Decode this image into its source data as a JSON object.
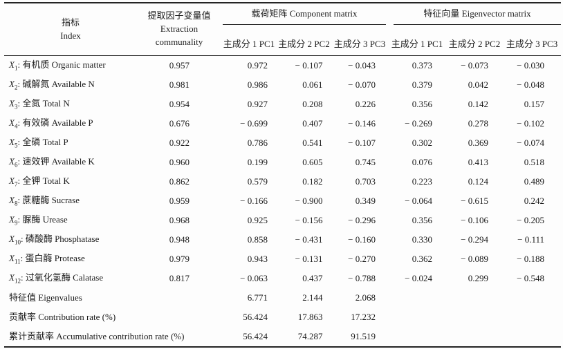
{
  "header": {
    "index_zh": "指标",
    "index_en": "Index",
    "communality_zh": "提取因子变量值",
    "communality_en": "Extraction communality",
    "component_matrix": "载荷矩阵 Component matrix",
    "eigenvector_matrix": "特征向量 Eigenvector matrix",
    "pc": [
      "主成分 1 PC1",
      "主成分 2 PC2",
      "主成分 3 PC3"
    ]
  },
  "rows": [
    {
      "sym": "X",
      "sub": "1",
      "label": ": 有机质 Organic matter",
      "communality": "0.957",
      "component": [
        "0.972",
        "− 0.107",
        "− 0.043"
      ],
      "eigenvector": [
        "0.373",
        "− 0.073",
        "− 0.030"
      ]
    },
    {
      "sym": "X",
      "sub": "2",
      "label": ": 碱解氮 Available N",
      "communality": "0.981",
      "component": [
        "0.986",
        "0.061",
        "− 0.070"
      ],
      "eigenvector": [
        "0.379",
        "0.042",
        "− 0.048"
      ]
    },
    {
      "sym": "X",
      "sub": "3",
      "label": ": 全氮 Total N",
      "communality": "0.954",
      "component": [
        "0.927",
        "0.208",
        "0.226"
      ],
      "eigenvector": [
        "0.356",
        "0.142",
        "0.157"
      ]
    },
    {
      "sym": "X",
      "sub": "4",
      "label": ": 有效磷 Available P",
      "communality": "0.676",
      "component": [
        "− 0.699",
        "0.407",
        "− 0.146"
      ],
      "eigenvector": [
        "− 0.269",
        "0.278",
        "− 0.102"
      ]
    },
    {
      "sym": "X",
      "sub": "5",
      "label": ": 全磷 Total P",
      "communality": "0.922",
      "component": [
        "0.786",
        "0.541",
        "− 0.107"
      ],
      "eigenvector": [
        "0.302",
        "0.369",
        "− 0.074"
      ]
    },
    {
      "sym": "X",
      "sub": "6",
      "label": ": 速效钾 Available K",
      "communality": "0.960",
      "component": [
        "0.199",
        "0.605",
        "0.745"
      ],
      "eigenvector": [
        "0.076",
        "0.413",
        "0.518"
      ]
    },
    {
      "sym": "X",
      "sub": "7",
      "label": ": 全钾 Total K",
      "communality": "0.862",
      "component": [
        "0.579",
        "0.182",
        "0.703"
      ],
      "eigenvector": [
        "0.223",
        "0.124",
        "0.489"
      ]
    },
    {
      "sym": "X",
      "sub": "8",
      "label": ": 蔗糖酶 Sucrase",
      "communality": "0.959",
      "component": [
        "− 0.166",
        "− 0.900",
        "0.349"
      ],
      "eigenvector": [
        "− 0.064",
        "− 0.615",
        "0.242"
      ]
    },
    {
      "sym": "X",
      "sub": "9",
      "label": ": 脲酶 Urease",
      "communality": "0.968",
      "component": [
        "0.925",
        "− 0.156",
        "− 0.296"
      ],
      "eigenvector": [
        "0.356",
        "− 0.106",
        "− 0.205"
      ]
    },
    {
      "sym": "X",
      "sub": "10",
      "label": ": 磷酸酶 Phosphatase",
      "communality": "0.948",
      "component": [
        "0.858",
        "− 0.431",
        "− 0.160"
      ],
      "eigenvector": [
        "0.330",
        "− 0.294",
        "− 0.111"
      ]
    },
    {
      "sym": "X",
      "sub": "11",
      "label": ": 蛋白酶 Protease",
      "communality": "0.979",
      "component": [
        "0.943",
        "− 0.131",
        "− 0.270"
      ],
      "eigenvector": [
        "0.362",
        "− 0.089",
        "− 0.188"
      ]
    },
    {
      "sym": "X",
      "sub": "12",
      "label": ": 过氧化氢酶 Calatase",
      "communality": "0.817",
      "component": [
        "− 0.063",
        "0.437",
        "− 0.788"
      ],
      "eigenvector": [
        "− 0.024",
        "0.299",
        "− 0.548"
      ]
    }
  ],
  "summary": [
    {
      "label": "特征值 Eigenvalues",
      "values": [
        "6.771",
        "2.144",
        "2.068"
      ]
    },
    {
      "label": "贡献率 Contribution rate (%)",
      "values": [
        "56.424",
        "17.863",
        "17.232"
      ]
    },
    {
      "label": "累计贡献率 Accumulative contribution rate (%)",
      "values": [
        "56.424",
        "74.287",
        "91.519"
      ]
    }
  ]
}
